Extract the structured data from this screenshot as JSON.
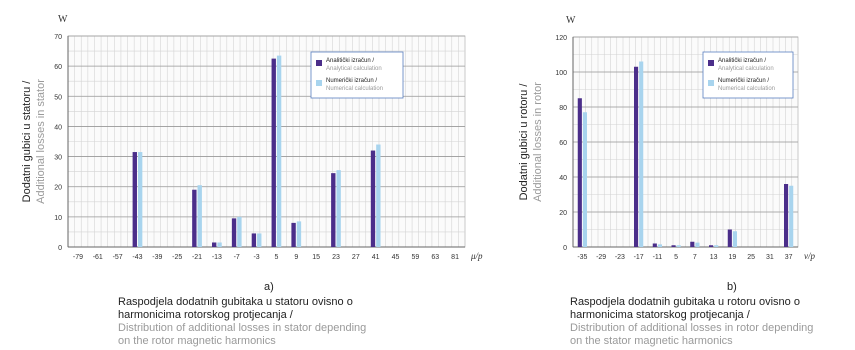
{
  "chart_data": [
    {
      "type": "bar",
      "unit": "W",
      "ylabel": "Dodatni gubici u statoru /",
      "ylabel_en": "Additional losses in stator",
      "xlabel": "μ/p",
      "ylim": [
        0,
        70
      ],
      "yticks": [
        0,
        10,
        20,
        30,
        40,
        50,
        60,
        70
      ],
      "categories": [
        "-79",
        "-61",
        "-57",
        "-43",
        "-39",
        "-25",
        "-21",
        "-13",
        "-7",
        "-3",
        "5",
        "9",
        "15",
        "23",
        "27",
        "41",
        "45",
        "59",
        "63",
        "81"
      ],
      "series": [
        {
          "name": "Analitički izračun / Analytical calculation",
          "color": "#4b2e8a",
          "values": [
            0,
            0,
            0,
            31.5,
            0,
            0,
            19,
            1.5,
            9.5,
            4.5,
            62.5,
            8,
            0,
            24.5,
            0,
            32,
            0,
            0,
            0,
            0
          ]
        },
        {
          "name": "Numerički izračun / Numerical calculation",
          "color": "#a8d4ee",
          "values": [
            0,
            0,
            0,
            31.5,
            0,
            0,
            20.5,
            1.5,
            10,
            4.5,
            63.5,
            8.5,
            0,
            25.5,
            0,
            34,
            0,
            0,
            0,
            0
          ]
        }
      ],
      "legend": [
        "Analitički izračun /",
        "Analytical calculation",
        "Numerički izračun /",
        "Numerical calculation"
      ],
      "legend_position": "top-right",
      "grid": true,
      "panel_label": "a)",
      "caption": "Raspodjela dodatnih gubitaka u statoru ovisno o harmonicima rotorskog protjecanja /",
      "caption_lines": [
        "Raspodjela dodatnih gubitaka u statoru ovisno o",
        "harmonicima rotorskog protjecanja /"
      ],
      "caption_en_lines": [
        "Distribution of additional losses in stator depending",
        "on the rotor magnetic harmonics"
      ]
    },
    {
      "type": "bar",
      "unit": "W",
      "ylabel": "Dodatni gubici u rotoru /",
      "ylabel_en": "Additional losses in rotor",
      "xlabel": "ν/p",
      "ylim": [
        0,
        120
      ],
      "yticks": [
        0,
        20,
        40,
        60,
        80,
        100,
        120
      ],
      "categories": [
        "-35",
        "-29",
        "-23",
        "-17",
        "-11",
        "5",
        "7",
        "13",
        "19",
        "25",
        "31",
        "37"
      ],
      "series": [
        {
          "name": "Analitički izračun / Analytical calculation",
          "color": "#4b2e8a",
          "values": [
            85,
            0,
            0,
            103,
            2,
            1,
            3,
            1,
            10,
            0,
            0,
            36
          ]
        },
        {
          "name": "Numerički izračun / Numerical calculation",
          "color": "#a8d4ee",
          "values": [
            77,
            0,
            0,
            106,
            1.5,
            1,
            2.5,
            1,
            9,
            0,
            0,
            35
          ]
        }
      ],
      "legend": [
        "Analitički izračun /",
        "Analytical calculation",
        "Numerički izračun /",
        "Numerical calculation"
      ],
      "legend_position": "top-right",
      "grid": true,
      "panel_label": "b)",
      "caption_lines": [
        "Raspodjela dodatnih gubitaka u rotoru ovisno o",
        "harmonicima statorskog protjecanja /"
      ],
      "caption_en_lines": [
        "Distribution of additional losses in rotor depending",
        "on the stator magnetic harmonics"
      ]
    }
  ]
}
